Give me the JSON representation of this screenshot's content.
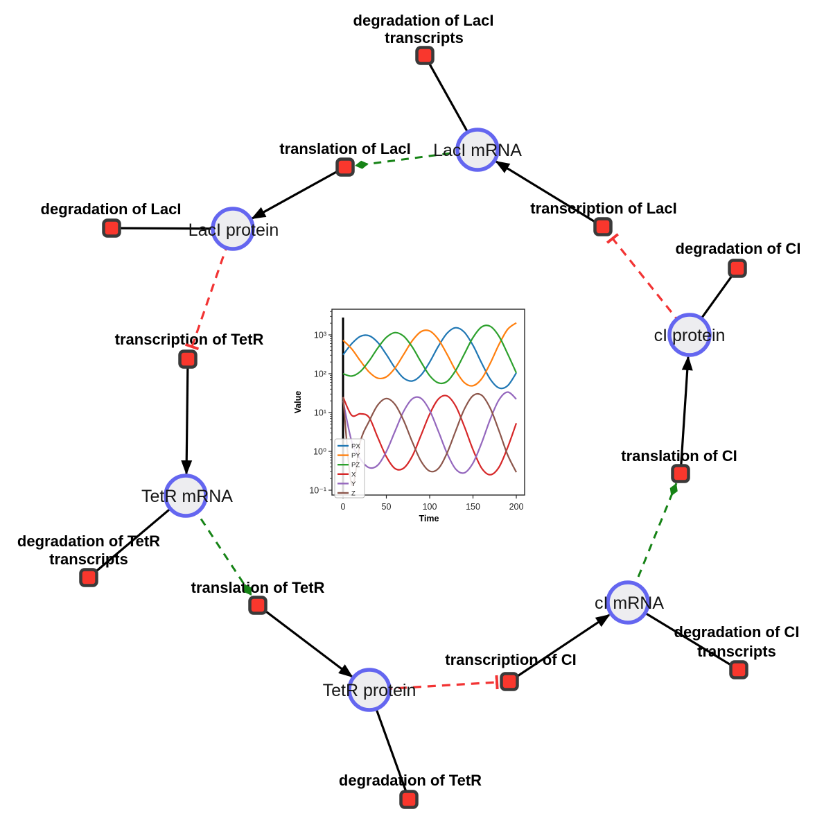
{
  "diagram": {
    "title": "repressilator reaction network",
    "species": [
      {
        "id": "laci_mrna",
        "label": "LacI mRNA"
      },
      {
        "id": "laci_protein",
        "label": "LacI protein"
      },
      {
        "id": "ci_protein",
        "label": "cI protein"
      },
      {
        "id": "tetr_mrna",
        "label": "TetR mRNA"
      },
      {
        "id": "ci_mrna",
        "label": "cI mRNA"
      },
      {
        "id": "tetr_protein",
        "label": "TetR protein"
      }
    ],
    "reactions": [
      {
        "id": "deg_laci_tx",
        "lines": [
          "degradation of LacI",
          "transcripts"
        ]
      },
      {
        "id": "translation_laci",
        "lines": [
          "translation of LacI"
        ]
      },
      {
        "id": "deg_laci",
        "lines": [
          "degradation of LacI"
        ]
      },
      {
        "id": "transcription_laci",
        "lines": [
          "transcription of LacI"
        ]
      },
      {
        "id": "deg_ci",
        "lines": [
          "degradation of CI"
        ]
      },
      {
        "id": "transcription_tetr",
        "lines": [
          "transcription of TetR"
        ]
      },
      {
        "id": "translation_ci",
        "lines": [
          "translation of CI"
        ]
      },
      {
        "id": "deg_tetr_tx",
        "lines": [
          "degradation of TetR",
          "transcripts"
        ]
      },
      {
        "id": "translation_tetr",
        "lines": [
          "translation of TetR"
        ]
      },
      {
        "id": "transcription_ci",
        "lines": [
          "transcription of CI"
        ]
      },
      {
        "id": "deg_ci_tx",
        "lines": [
          "degradation of CI",
          "transcripts"
        ]
      },
      {
        "id": "deg_tetr",
        "lines": [
          "degradation of TetR"
        ]
      }
    ],
    "colors": {
      "species_fill": "#ededf0",
      "species_border": "#6466f0",
      "reaction_fill": "#f9372d",
      "reaction_border": "#3a3a3a",
      "product_edge": "#000000",
      "modifier_edge": "#168316",
      "inhibition_edge": "#f23333"
    }
  },
  "chart_data": {
    "type": "line",
    "title": "",
    "xlabel": "Time",
    "ylabel": "Value",
    "y_scale": "log",
    "grid": false,
    "legend_position": "lower left",
    "x_ticks": [
      0,
      50,
      100,
      150,
      200
    ],
    "y_ticks": [
      0.1,
      1,
      10,
      100,
      1000
    ],
    "y_tick_labels": [
      "10⁻¹",
      "10⁰",
      "10¹",
      "10²",
      "10³"
    ],
    "xlim": [
      -8,
      210
    ],
    "ylim": [
      0.056,
      4600
    ],
    "vline_x": 0,
    "x": [
      0,
      10,
      20,
      30,
      40,
      50,
      60,
      70,
      80,
      90,
      100,
      110,
      120,
      130,
      140,
      150,
      160,
      170,
      180,
      190,
      200
    ],
    "series": [
      {
        "name": "PX",
        "color": "#1f77b4",
        "values": [
          307,
          593,
          917,
          953,
          641,
          312,
          140,
          77,
          65,
          92,
          199,
          507,
          1094,
          1528,
          1172,
          538,
          188,
          72,
          43,
          49,
          105
        ]
      },
      {
        "name": "PY",
        "color": "#ff7f0e",
        "values": [
          727,
          436,
          214,
          111,
          77,
          83,
          140,
          314,
          710,
          1210,
          1259,
          768,
          319,
          121,
          59,
          49,
          74,
          187,
          564,
          1390,
          2042
        ]
      },
      {
        "name": "PZ",
        "color": "#2ca02c",
        "values": [
          100,
          87,
          114,
          212,
          456,
          863,
          1143,
          923,
          484,
          201,
          89,
          58,
          63,
          121,
          321,
          851,
          1596,
          1660,
          920,
          326,
          105
        ]
      },
      {
        "name": "X",
        "color": "#d62728",
        "values": [
          25,
          8.5,
          9.3,
          7.5,
          2.3,
          0.73,
          0.36,
          0.37,
          0.76,
          2.6,
          9.1,
          22.2,
          26.8,
          14.7,
          4.4,
          1.11,
          0.37,
          0.25,
          0.39,
          1.26,
          5.3
        ]
      },
      {
        "name": "Y",
        "color": "#9467bd",
        "values": [
          20,
          1.8,
          0.64,
          0.38,
          0.44,
          0.99,
          3.3,
          10.8,
          22.6,
          23.2,
          11.3,
          3.3,
          0.9,
          0.35,
          0.28,
          0.5,
          1.65,
          6.8,
          21.2,
          33.7,
          22.2
        ]
      },
      {
        "name": "Z",
        "color": "#8c564b",
        "values": [
          25,
          0.14,
          1.8,
          5.9,
          15.5,
          22.9,
          16.2,
          6.2,
          1.74,
          0.56,
          0.31,
          0.36,
          0.9,
          3.35,
          12.2,
          27.2,
          27.9,
          12.8,
          3.4,
          0.81,
          0.29
        ]
      }
    ]
  }
}
